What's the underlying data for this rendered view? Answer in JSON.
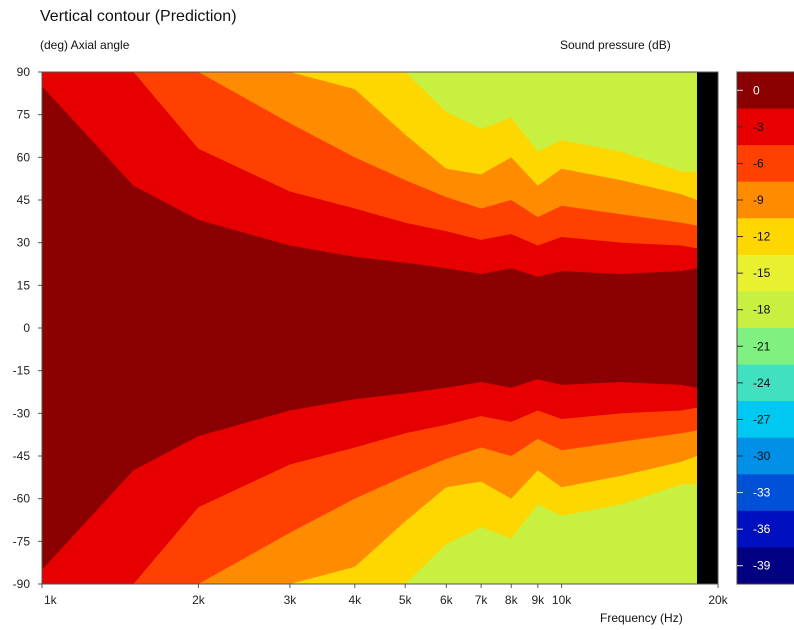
{
  "chart_data": {
    "type": "heatmap",
    "title": "Vertical contour (Prediction)",
    "ylabel": "(deg)  Axial angle",
    "xlabel": "Frequency  (Hz)",
    "colorbar_label": "Sound pressure  (dB)",
    "x_scale": "log",
    "xlim": [
      1000,
      20000
    ],
    "ylim": [
      -90,
      90
    ],
    "x_ticks": [
      {
        "value": 1000,
        "label": "1k"
      },
      {
        "value": 2000,
        "label": "2k"
      },
      {
        "value": 3000,
        "label": "3k"
      },
      {
        "value": 4000,
        "label": "4k"
      },
      {
        "value": 5000,
        "label": "5k"
      },
      {
        "value": 6000,
        "label": "6k"
      },
      {
        "value": 7000,
        "label": "7k"
      },
      {
        "value": 8000,
        "label": "8k"
      },
      {
        "value": 9000,
        "label": "9k"
      },
      {
        "value": 10000,
        "label": "10k"
      },
      {
        "value": 20000,
        "label": "20k"
      }
    ],
    "y_ticks": [
      "90",
      "75",
      "60",
      "45",
      "30",
      "15",
      "0",
      "-15",
      "-30",
      "-45",
      "-60",
      "-75",
      "-90"
    ],
    "colorbar": {
      "levels": [
        "0",
        "-3",
        "-6",
        "-9",
        "-12",
        "-15",
        "-18",
        "-21",
        "-24",
        "-27",
        "-30",
        "-33",
        "-36",
        "-39"
      ],
      "colors": [
        "#8b0000",
        "#e60000",
        "#ff4000",
        "#ff8c00",
        "#ffd700",
        "#e8f030",
        "#c8f040",
        "#80f080",
        "#40e0c0",
        "#00c8f0",
        "#0090e8",
        "#0050d8",
        "#0010c0",
        "#000080"
      ]
    },
    "contour_boundaries": [
      {
        "level": "-3",
        "freq": [
          1000,
          1500,
          2000,
          3000,
          4000,
          5000,
          6000,
          7000,
          8000,
          9000,
          10000,
          13000,
          17000,
          18500
        ],
        "angle": [
          85,
          50,
          38,
          29,
          25,
          23,
          21,
          19,
          21,
          18,
          20,
          19,
          20,
          21
        ]
      },
      {
        "level": "-6",
        "freq": [
          1000,
          1500,
          2000,
          3000,
          4000,
          5000,
          6000,
          7000,
          8000,
          9000,
          10000,
          13000,
          17000,
          18500
        ],
        "angle": [
          90,
          90,
          63,
          48,
          42,
          37,
          34,
          31,
          33,
          29,
          32,
          30,
          29,
          28
        ]
      },
      {
        "level": "-9",
        "freq": [
          1000,
          1500,
          2000,
          3000,
          4000,
          5000,
          6000,
          7000,
          8000,
          9000,
          10000,
          13000,
          17000,
          18500
        ],
        "angle": [
          90,
          90,
          90,
          72,
          60,
          52,
          46,
          42,
          45,
          39,
          43,
          40,
          37,
          36
        ]
      },
      {
        "level": "-12",
        "freq": [
          1000,
          1500,
          2000,
          3000,
          4000,
          5000,
          6000,
          7000,
          8000,
          9000,
          10000,
          13000,
          17000,
          18500
        ],
        "angle": [
          90,
          90,
          90,
          90,
          84,
          68,
          56,
          54,
          60,
          50,
          56,
          52,
          47,
          45
        ]
      },
      {
        "level": "-15",
        "freq": [
          1000,
          1500,
          2000,
          3000,
          4000,
          5000,
          6000,
          7000,
          8000,
          9000,
          10000,
          13000,
          17000,
          18500
        ],
        "angle": [
          90,
          90,
          90,
          90,
          90,
          90,
          76,
          70,
          74,
          62,
          66,
          62,
          55,
          55
        ]
      }
    ],
    "z_unit": "dB"
  }
}
